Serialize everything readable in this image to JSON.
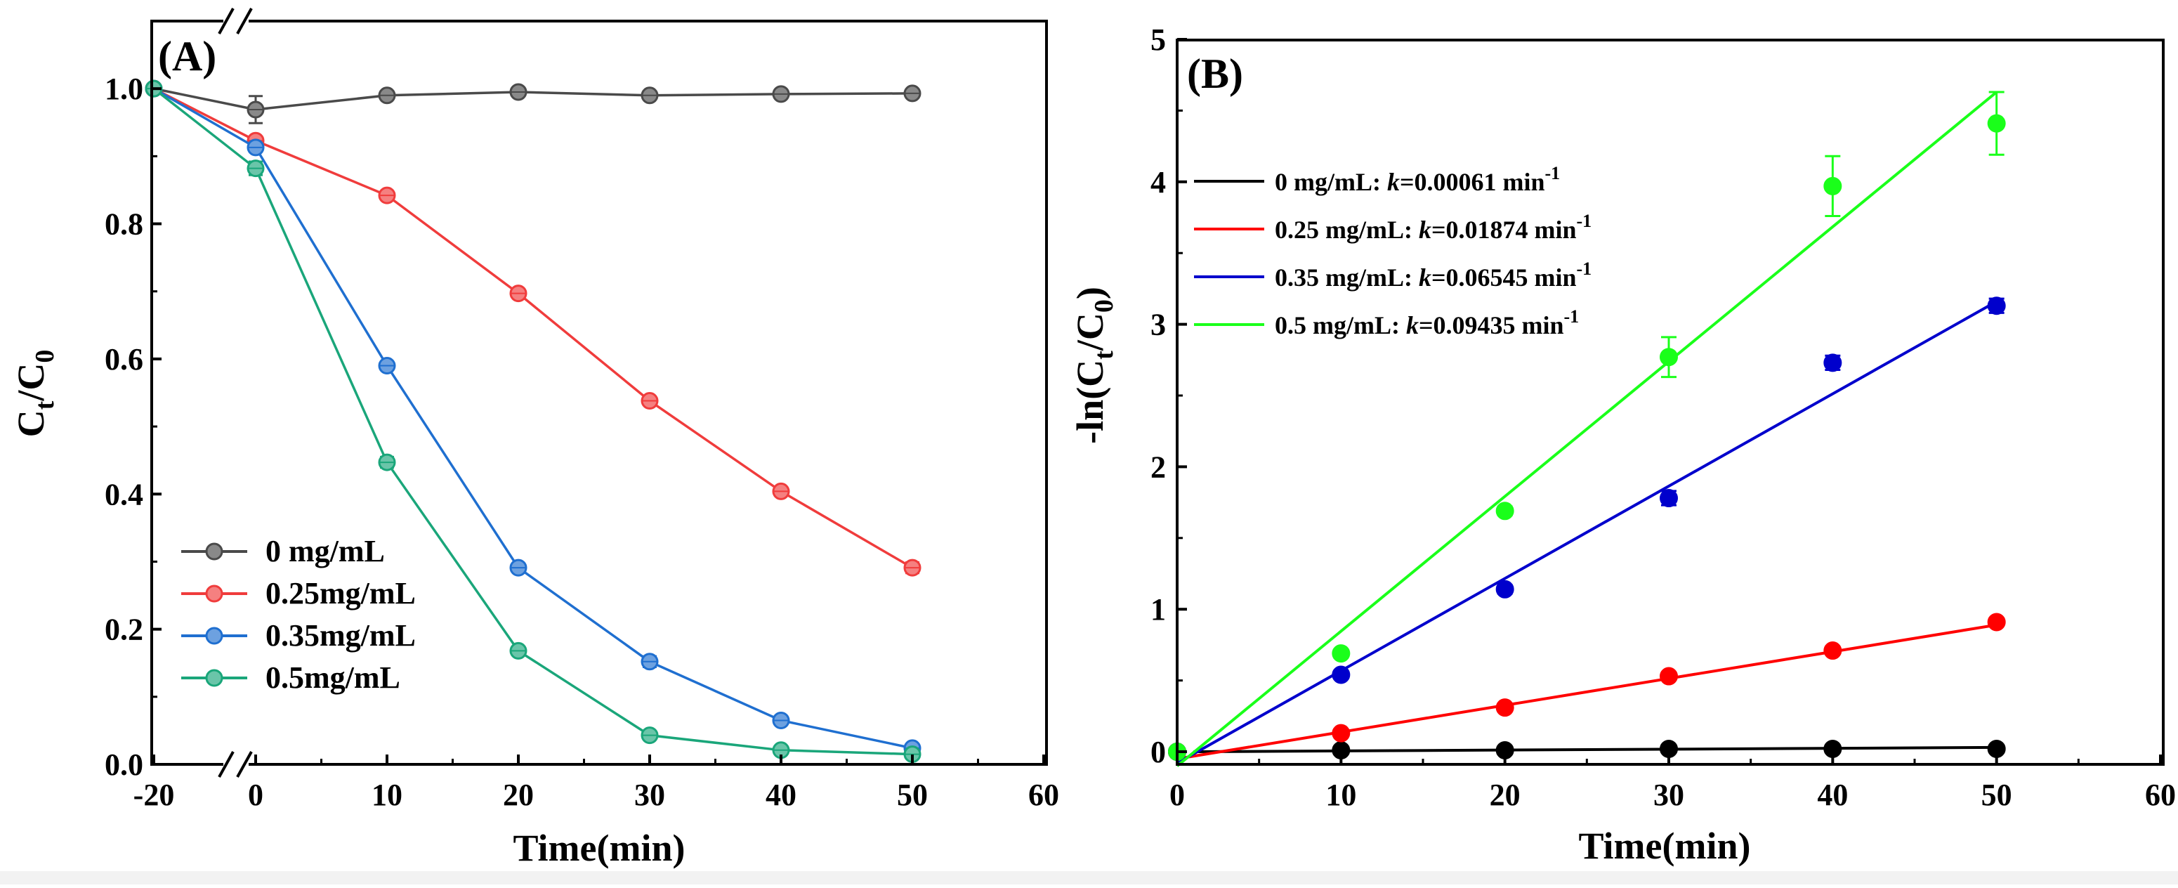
{
  "chart_data": [
    {
      "panel": "(A)",
      "type": "line",
      "xlabel": "Time(min)",
      "ylabel_main": "C",
      "ylabel_sub1": "t",
      "ylabel_slash": "/C",
      "ylabel_sub2": "0",
      "xlim": [
        -20,
        60
      ],
      "ylim": [
        0.0,
        1.1
      ],
      "x_axis_break": "between -20 and 0",
      "xticks": [
        "-20",
        "0",
        "10",
        "20",
        "30",
        "40",
        "50",
        "60"
      ],
      "yticks": [
        "0.0",
        "0.2",
        "0.4",
        "0.6",
        "0.8",
        "1.0"
      ],
      "legend_position": "bottom-left",
      "series": [
        {
          "name": "0 mg/mL",
          "color": "#4a4a4a",
          "x": [
            -20,
            0,
            10,
            20,
            30,
            40,
            50
          ],
          "values": [
            1.0,
            0.969,
            0.99,
            0.995,
            0.99,
            0.992,
            0.993
          ],
          "err": [
            0,
            0.02,
            0.005,
            0.005,
            0.005,
            0.005,
            0.005
          ]
        },
        {
          "name": "0.25mg/mL",
          "color": "#f03c3c",
          "x": [
            -20,
            0,
            10,
            20,
            30,
            40,
            50
          ],
          "values": [
            1.0,
            0.923,
            0.842,
            0.697,
            0.538,
            0.404,
            0.291
          ],
          "err": [
            0,
            0.005,
            0.005,
            0.005,
            0.005,
            0.005,
            0.008
          ]
        },
        {
          "name": "0.35mg/mL",
          "color": "#1f6fd0",
          "x": [
            -20,
            0,
            10,
            20,
            30,
            40,
            50
          ],
          "values": [
            1.0,
            0.913,
            0.59,
            0.291,
            0.152,
            0.065,
            0.024
          ],
          "err": [
            0,
            0.005,
            0.005,
            0.005,
            0.008,
            0.005,
            0.005
          ]
        },
        {
          "name": "0.5mg/mL",
          "color": "#1aa67a",
          "x": [
            -20,
            0,
            10,
            20,
            30,
            40,
            50
          ],
          "values": [
            1.0,
            0.882,
            0.447,
            0.168,
            0.043,
            0.021,
            0.015
          ],
          "err": [
            0,
            0.01,
            0.008,
            0.005,
            0.005,
            0.005,
            0.005
          ]
        }
      ]
    },
    {
      "panel": "(B)",
      "type": "scatter",
      "xlabel": "Time(min)",
      "ylabel_main": "-ln(C",
      "ylabel_sub1": "t",
      "ylabel_slash": "/C",
      "ylabel_sub2": "0",
      "ylabel_end": ")",
      "xlim": [
        0,
        60
      ],
      "ylim": [
        -0.1,
        5.0
      ],
      "xticks": [
        "0",
        "10",
        "20",
        "30",
        "40",
        "50",
        "60"
      ],
      "yticks": [
        "0",
        "1",
        "2",
        "3",
        "4",
        "5"
      ],
      "legend_position": "top-left",
      "fit": "linear",
      "series": [
        {
          "legend_prefix": "0 mg/mL: ",
          "legend_k": "k",
          "legend_value": "=0.00061 min",
          "legend_exp": "-1",
          "color": "#000000",
          "x": [
            0,
            10,
            20,
            30,
            40,
            50
          ],
          "values": [
            0.0,
            0.01,
            0.01,
            0.02,
            0.02,
            0.02
          ],
          "err": [
            0,
            0,
            0,
            0,
            0,
            0
          ],
          "fit_line": [
            [
              1,
              0.0
            ],
            [
              50,
              0.03
            ]
          ]
        },
        {
          "legend_prefix": "0.25 mg/mL: ",
          "legend_k": "k",
          "legend_value": "=0.01874 min",
          "legend_exp": "-1",
          "color": "#ff0000",
          "x": [
            0,
            10,
            20,
            30,
            40,
            50
          ],
          "values": [
            0.0,
            0.13,
            0.31,
            0.53,
            0.71,
            0.91
          ],
          "err": [
            0,
            0,
            0,
            0,
            0,
            0.02
          ],
          "fit_line": [
            [
              0,
              -0.05
            ],
            [
              50,
              0.89
            ]
          ]
        },
        {
          "legend_prefix": "0.35 mg/mL: ",
          "legend_k": "k",
          "legend_value": "=0.06545 min",
          "legend_exp": "-1",
          "color": "#0000cc",
          "x": [
            0,
            10,
            20,
            30,
            40,
            50
          ],
          "values": [
            0.0,
            0.54,
            1.14,
            1.78,
            2.73,
            3.13
          ],
          "err": [
            0,
            0.02,
            0.03,
            0.05,
            0.05,
            0.05
          ],
          "fit_line": [
            [
              0,
              -0.08
            ],
            [
              50,
              3.16
            ]
          ]
        },
        {
          "legend_prefix": "0.5 mg/mL: ",
          "legend_k": "k",
          "legend_value": "=0.09435 min",
          "legend_exp": "-1",
          "color": "#1aff1a",
          "x": [
            0,
            10,
            20,
            30,
            40,
            50
          ],
          "values": [
            0.0,
            0.69,
            1.69,
            2.77,
            3.97,
            4.41
          ],
          "err": [
            0,
            0.02,
            0.03,
            0.14,
            0.21,
            0.22
          ],
          "fit_line": [
            [
              0,
              -0.1
            ],
            [
              50,
              4.63
            ]
          ]
        }
      ]
    }
  ]
}
